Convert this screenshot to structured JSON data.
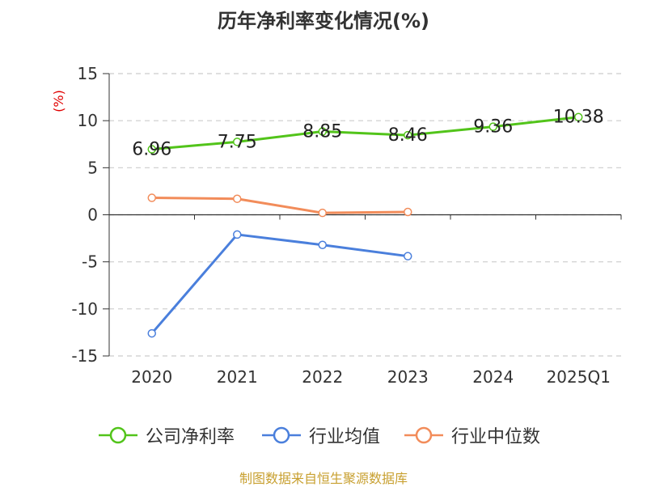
{
  "chart_data": {
    "type": "line",
    "title": "历年净利率变化情况(%)",
    "ylabel": "(%)",
    "categories": [
      "2020",
      "2021",
      "2022",
      "2023",
      "2024",
      "2025Q1"
    ],
    "ylim": [
      -15,
      15
    ],
    "yticks": [
      15,
      10,
      5,
      0,
      -5,
      -10,
      -15
    ],
    "grid": true,
    "legend_position": "bottom",
    "series": [
      {
        "name": "公司净利率",
        "color": "#52c41a",
        "values": [
          6.96,
          7.75,
          8.85,
          8.46,
          9.36,
          10.38
        ],
        "data_labels": [
          "6.96",
          "7.75",
          "8.85",
          "8.46",
          "9.36",
          "10.38"
        ]
      },
      {
        "name": "行业均值",
        "color": "#4a7fdc",
        "values": [
          -12.6,
          -2.1,
          -3.2,
          -4.4,
          null,
          null
        ]
      },
      {
        "name": "行业中位数",
        "color": "#f28c5a",
        "values": [
          1.8,
          1.7,
          0.2,
          0.3,
          null,
          null
        ]
      }
    ]
  },
  "footer": {
    "source": "制图数据来自恒生聚源数据库"
  }
}
